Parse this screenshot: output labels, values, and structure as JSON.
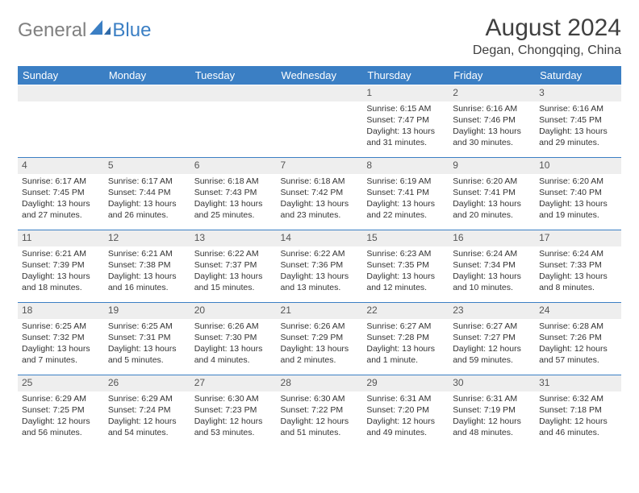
{
  "brand": {
    "part1": "General",
    "part2": "Blue"
  },
  "header": {
    "month_title": "August 2024",
    "location": "Degan, Chongqing, China"
  },
  "colors": {
    "accent": "#3b7fc4",
    "header_bg": "#3b7fc4",
    "header_text": "#ffffff",
    "daynum_bg": "#eeeeee",
    "text": "#333333",
    "title_text": "#404040",
    "logo_gray": "#808080",
    "background": "#ffffff",
    "cell_border": "#3b7fc4"
  },
  "typography": {
    "title_fontsize": 30,
    "location_fontsize": 16,
    "dayheader_fontsize": 13,
    "daynum_fontsize": 12,
    "info_fontsize": 10.5
  },
  "calendar": {
    "day_headers": [
      "Sunday",
      "Monday",
      "Tuesday",
      "Wednesday",
      "Thursday",
      "Friday",
      "Saturday"
    ],
    "weeks": [
      [
        null,
        null,
        null,
        null,
        {
          "n": "1",
          "sunrise": "6:15 AM",
          "sunset": "7:47 PM",
          "daylight": "13 hours and 31 minutes."
        },
        {
          "n": "2",
          "sunrise": "6:16 AM",
          "sunset": "7:46 PM",
          "daylight": "13 hours and 30 minutes."
        },
        {
          "n": "3",
          "sunrise": "6:16 AM",
          "sunset": "7:45 PM",
          "daylight": "13 hours and 29 minutes."
        }
      ],
      [
        {
          "n": "4",
          "sunrise": "6:17 AM",
          "sunset": "7:45 PM",
          "daylight": "13 hours and 27 minutes."
        },
        {
          "n": "5",
          "sunrise": "6:17 AM",
          "sunset": "7:44 PM",
          "daylight": "13 hours and 26 minutes."
        },
        {
          "n": "6",
          "sunrise": "6:18 AM",
          "sunset": "7:43 PM",
          "daylight": "13 hours and 25 minutes."
        },
        {
          "n": "7",
          "sunrise": "6:18 AM",
          "sunset": "7:42 PM",
          "daylight": "13 hours and 23 minutes."
        },
        {
          "n": "8",
          "sunrise": "6:19 AM",
          "sunset": "7:41 PM",
          "daylight": "13 hours and 22 minutes."
        },
        {
          "n": "9",
          "sunrise": "6:20 AM",
          "sunset": "7:41 PM",
          "daylight": "13 hours and 20 minutes."
        },
        {
          "n": "10",
          "sunrise": "6:20 AM",
          "sunset": "7:40 PM",
          "daylight": "13 hours and 19 minutes."
        }
      ],
      [
        {
          "n": "11",
          "sunrise": "6:21 AM",
          "sunset": "7:39 PM",
          "daylight": "13 hours and 18 minutes."
        },
        {
          "n": "12",
          "sunrise": "6:21 AM",
          "sunset": "7:38 PM",
          "daylight": "13 hours and 16 minutes."
        },
        {
          "n": "13",
          "sunrise": "6:22 AM",
          "sunset": "7:37 PM",
          "daylight": "13 hours and 15 minutes."
        },
        {
          "n": "14",
          "sunrise": "6:22 AM",
          "sunset": "7:36 PM",
          "daylight": "13 hours and 13 minutes."
        },
        {
          "n": "15",
          "sunrise": "6:23 AM",
          "sunset": "7:35 PM",
          "daylight": "13 hours and 12 minutes."
        },
        {
          "n": "16",
          "sunrise": "6:24 AM",
          "sunset": "7:34 PM",
          "daylight": "13 hours and 10 minutes."
        },
        {
          "n": "17",
          "sunrise": "6:24 AM",
          "sunset": "7:33 PM",
          "daylight": "13 hours and 8 minutes."
        }
      ],
      [
        {
          "n": "18",
          "sunrise": "6:25 AM",
          "sunset": "7:32 PM",
          "daylight": "13 hours and 7 minutes."
        },
        {
          "n": "19",
          "sunrise": "6:25 AM",
          "sunset": "7:31 PM",
          "daylight": "13 hours and 5 minutes."
        },
        {
          "n": "20",
          "sunrise": "6:26 AM",
          "sunset": "7:30 PM",
          "daylight": "13 hours and 4 minutes."
        },
        {
          "n": "21",
          "sunrise": "6:26 AM",
          "sunset": "7:29 PM",
          "daylight": "13 hours and 2 minutes."
        },
        {
          "n": "22",
          "sunrise": "6:27 AM",
          "sunset": "7:28 PM",
          "daylight": "13 hours and 1 minute."
        },
        {
          "n": "23",
          "sunrise": "6:27 AM",
          "sunset": "7:27 PM",
          "daylight": "12 hours and 59 minutes."
        },
        {
          "n": "24",
          "sunrise": "6:28 AM",
          "sunset": "7:26 PM",
          "daylight": "12 hours and 57 minutes."
        }
      ],
      [
        {
          "n": "25",
          "sunrise": "6:29 AM",
          "sunset": "7:25 PM",
          "daylight": "12 hours and 56 minutes."
        },
        {
          "n": "26",
          "sunrise": "6:29 AM",
          "sunset": "7:24 PM",
          "daylight": "12 hours and 54 minutes."
        },
        {
          "n": "27",
          "sunrise": "6:30 AM",
          "sunset": "7:23 PM",
          "daylight": "12 hours and 53 minutes."
        },
        {
          "n": "28",
          "sunrise": "6:30 AM",
          "sunset": "7:22 PM",
          "daylight": "12 hours and 51 minutes."
        },
        {
          "n": "29",
          "sunrise": "6:31 AM",
          "sunset": "7:20 PM",
          "daylight": "12 hours and 49 minutes."
        },
        {
          "n": "30",
          "sunrise": "6:31 AM",
          "sunset": "7:19 PM",
          "daylight": "12 hours and 48 minutes."
        },
        {
          "n": "31",
          "sunrise": "6:32 AM",
          "sunset": "7:18 PM",
          "daylight": "12 hours and 46 minutes."
        }
      ]
    ]
  },
  "labels": {
    "sunrise_prefix": "Sunrise: ",
    "sunset_prefix": "Sunset: ",
    "daylight_prefix": "Daylight: "
  }
}
